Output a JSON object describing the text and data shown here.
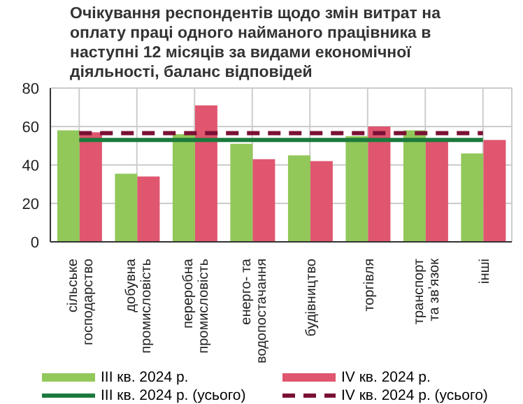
{
  "chart_data": {
    "type": "bar",
    "title": "Очікування респондентів щодо змін витрат на оплату праці одного найманого працівника в наступні 12 місяців за видами економічної діяльності, баланс відповідей",
    "categories": [
      "сільське\nгосподарство",
      "добувна\nпромисловість",
      "переробна\nпромисловість",
      "енерго- та\nводопостачання",
      "будівництво",
      "торгівля",
      "транспорт\nта звʼязок",
      "інші"
    ],
    "series": [
      {
        "name": "III кв. 2024 р.",
        "color": "#92c85a",
        "values": [
          58,
          35.5,
          56,
          51,
          45,
          55,
          58,
          46
        ]
      },
      {
        "name": "IV кв. 2024 р.",
        "color": "#e0566f",
        "values": [
          57,
          34,
          71,
          43,
          42,
          60,
          53,
          53
        ]
      },
      {
        "name": "III кв. 2024 р. (усього)",
        "type": "line",
        "line_style": "solid",
        "color": "#1c7a3c",
        "values": [
          53,
          53,
          53,
          53,
          53,
          53,
          53,
          53
        ]
      },
      {
        "name": "IV кв. 2024 р. (усього)",
        "type": "line",
        "line_style": "dashed",
        "color": "#7a1035",
        "values": [
          56.5,
          56.5,
          56.5,
          56.5,
          56.5,
          56.5,
          56.5,
          56.5
        ]
      }
    ],
    "ylim": [
      0,
      80
    ],
    "yticks": [
      0,
      20,
      40,
      60,
      80
    ],
    "grid": true,
    "legend": "bottom",
    "marker": "none"
  }
}
